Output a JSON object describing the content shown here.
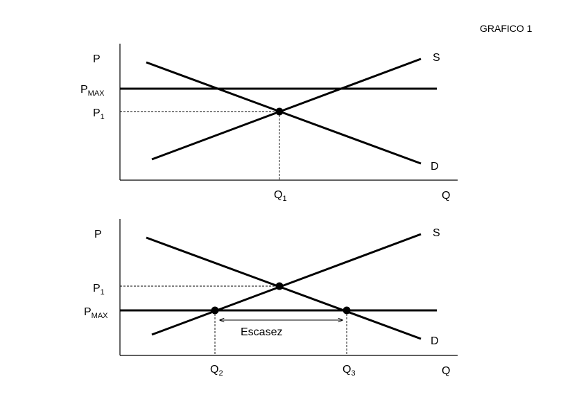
{
  "title": "GRAFICO 1",
  "panels": [
    {
      "y_axis": "P",
      "x_axis": "Q",
      "supply": "S",
      "demand": "D",
      "price_ceiling": {
        "base": "P",
        "sub": "MAX"
      },
      "equilibrium_price": {
        "base": "P",
        "sub": "1"
      },
      "quantities": [
        {
          "base": "Q",
          "sub": "1"
        }
      ]
    },
    {
      "y_axis": "P",
      "x_axis": "Q",
      "supply": "S",
      "demand": "D",
      "price_ceiling": {
        "base": "P",
        "sub": "MAX"
      },
      "equilibrium_price": {
        "base": "P",
        "sub": "1"
      },
      "quantities": [
        {
          "base": "Q",
          "sub": "2"
        },
        {
          "base": "Q",
          "sub": "3"
        }
      ],
      "shortage": "Escasez"
    }
  ]
}
